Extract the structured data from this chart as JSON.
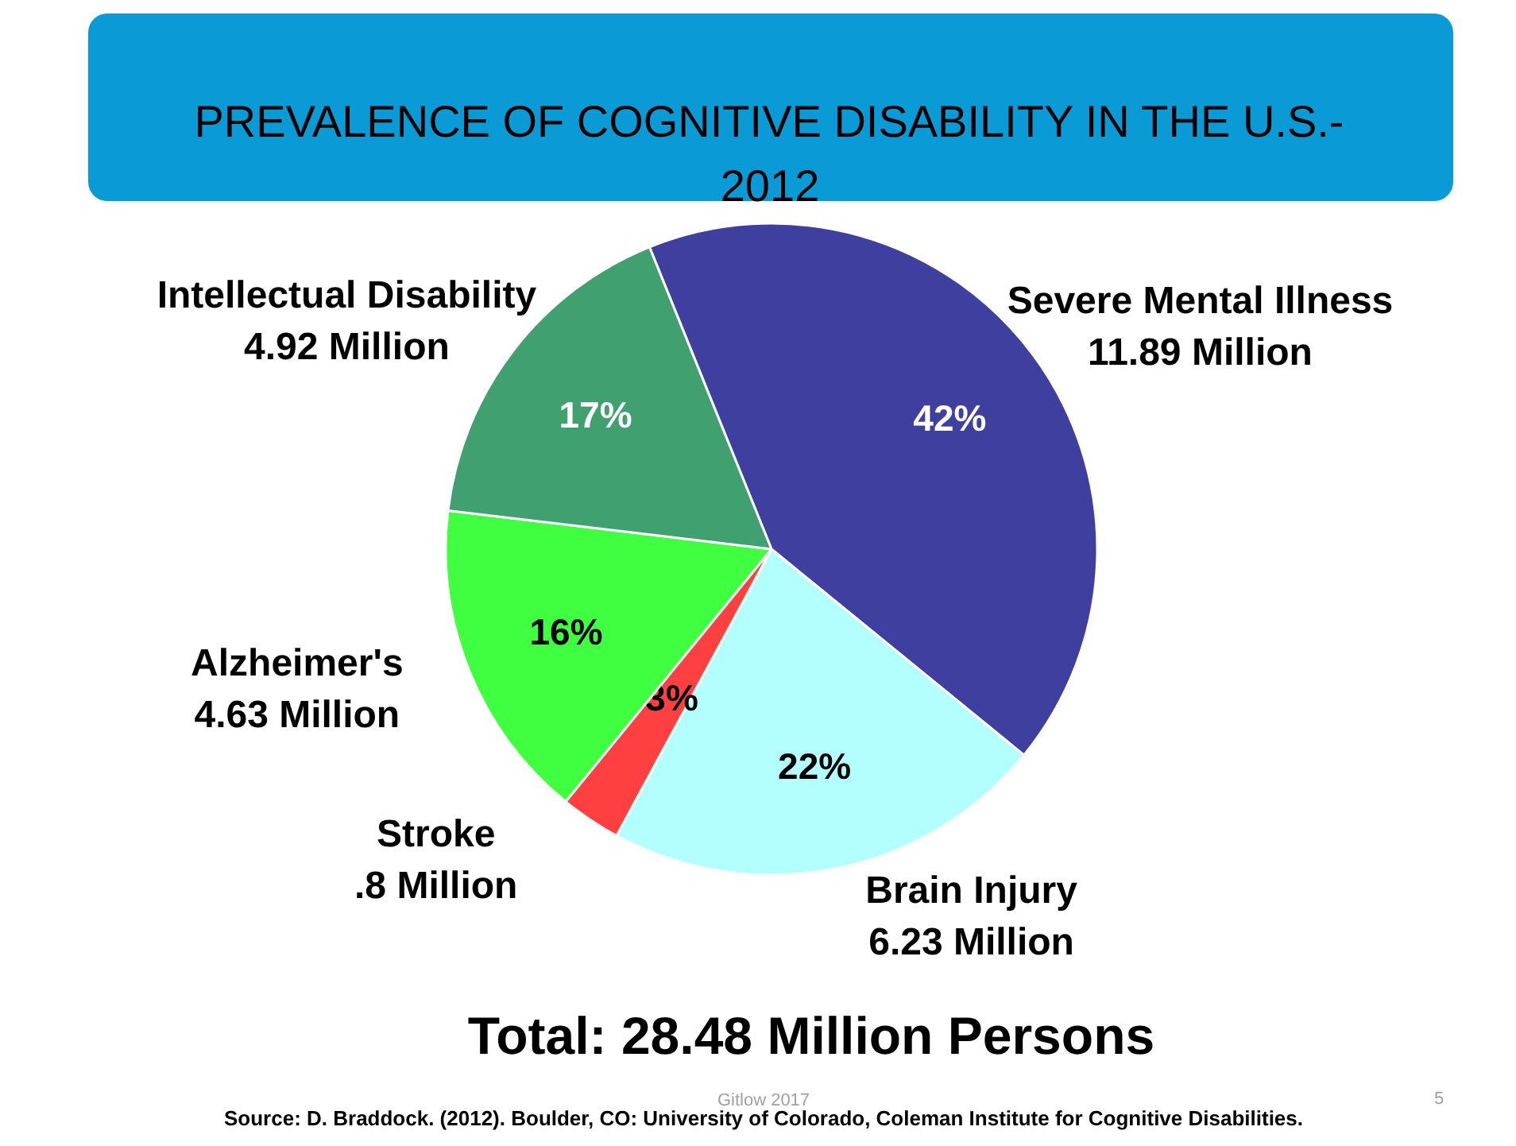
{
  "chart_data": {
    "type": "pie",
    "title": "PREVALENCE OF COGNITIVE DISABILITY IN THE U.S.- 2012",
    "categories": [
      "Severe Mental Illness\n11.89 Million",
      "Brain Injury\n6.23 Million",
      "Stroke\n.8 Million",
      "Alzheimer's\n4.63 Million",
      "Intellectual Disability\n4.92 Million"
    ],
    "values": [
      42,
      22,
      3,
      16,
      17
    ],
    "value_labels": [
      "42%",
      "22%",
      "3%",
      "16%",
      "17%"
    ],
    "colors": [
      "#3f3f9f",
      "#b3ffff",
      "#ff4040",
      "#40ff40",
      "#40a070"
    ],
    "annotations": [
      "Total: 28.48 Million Persons",
      "Source: D. Braddock. (2012). Boulder, CO: University of Colorado, Coleman Institute for Cognitive Disabilities.",
      "Gitlow 2017",
      "5"
    ]
  }
}
